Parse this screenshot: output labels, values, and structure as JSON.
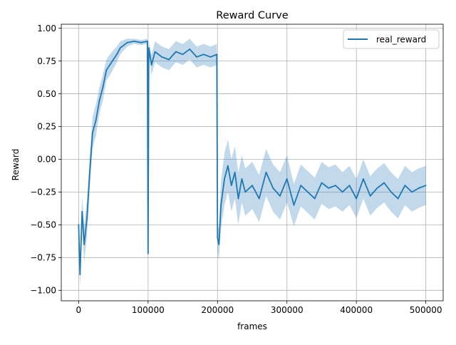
{
  "chart_data": {
    "type": "line",
    "title": "Reward Curve",
    "xlabel": "frames",
    "ylabel": "Reward",
    "xlim": [
      -25000,
      525000
    ],
    "ylim": [
      -1.08,
      1.03
    ],
    "x_ticks": [
      0,
      100000,
      200000,
      300000,
      400000,
      500000
    ],
    "x_tick_labels": [
      "0",
      "100000",
      "200000",
      "300000",
      "400000",
      "500000"
    ],
    "y_ticks": [
      -1.0,
      -0.75,
      -0.5,
      -0.25,
      0.0,
      0.25,
      0.5,
      0.75,
      1.0
    ],
    "y_tick_labels": [
      "−1.00",
      "−0.75",
      "−0.50",
      "−0.25",
      "0.00",
      "0.25",
      "0.50",
      "0.75",
      "1.00"
    ],
    "grid": true,
    "legend_position": "top-right",
    "series": [
      {
        "name": "real_reward",
        "color": "#1f77b4",
        "band_color": "#1f77b4",
        "x": [
          0,
          2000,
          5000,
          8000,
          12000,
          16000,
          20000,
          25000,
          30000,
          35000,
          40000,
          45000,
          50000,
          55000,
          60000,
          65000,
          70000,
          80000,
          90000,
          99000,
          100000,
          101000,
          105000,
          110000,
          120000,
          130000,
          140000,
          150000,
          160000,
          170000,
          180000,
          190000,
          199000,
          200000,
          202000,
          205000,
          210000,
          215000,
          220000,
          225000,
          230000,
          235000,
          240000,
          250000,
          260000,
          270000,
          280000,
          290000,
          300000,
          310000,
          320000,
          330000,
          340000,
          350000,
          360000,
          370000,
          380000,
          390000,
          400000,
          410000,
          420000,
          430000,
          440000,
          450000,
          460000,
          470000,
          480000,
          490000,
          500000
        ],
        "y": [
          -0.5,
          -0.88,
          -0.4,
          -0.65,
          -0.45,
          -0.1,
          0.2,
          0.3,
          0.45,
          0.55,
          0.68,
          0.72,
          0.76,
          0.8,
          0.85,
          0.87,
          0.89,
          0.9,
          0.89,
          0.9,
          -0.72,
          0.85,
          0.72,
          0.82,
          0.78,
          0.76,
          0.82,
          0.8,
          0.84,
          0.78,
          0.8,
          0.78,
          0.8,
          -0.6,
          -0.65,
          -0.35,
          -0.15,
          -0.05,
          -0.2,
          -0.1,
          -0.3,
          -0.15,
          -0.25,
          -0.2,
          -0.3,
          -0.1,
          -0.22,
          -0.28,
          -0.15,
          -0.35,
          -0.2,
          -0.25,
          -0.3,
          -0.18,
          -0.22,
          -0.2,
          -0.25,
          -0.2,
          -0.3,
          -0.15,
          -0.28,
          -0.22,
          -0.18,
          -0.25,
          -0.3,
          -0.2,
          -0.25,
          -0.22,
          -0.2
        ],
        "band_halfwidth": [
          0.1,
          0.1,
          0.12,
          0.14,
          0.14,
          0.12,
          0.12,
          0.12,
          0.1,
          0.1,
          0.08,
          0.08,
          0.07,
          0.06,
          0.05,
          0.04,
          0.03,
          0.02,
          0.02,
          0.02,
          0.02,
          0.05,
          0.08,
          0.08,
          0.08,
          0.08,
          0.08,
          0.08,
          0.08,
          0.08,
          0.08,
          0.08,
          0.08,
          0.1,
          0.12,
          0.18,
          0.2,
          0.2,
          0.2,
          0.2,
          0.2,
          0.18,
          0.18,
          0.18,
          0.18,
          0.18,
          0.18,
          0.18,
          0.18,
          0.16,
          0.16,
          0.16,
          0.16,
          0.16,
          0.16,
          0.16,
          0.15,
          0.15,
          0.15,
          0.15,
          0.15,
          0.15,
          0.15,
          0.15,
          0.15,
          0.15,
          0.15,
          0.15,
          0.15
        ]
      }
    ]
  }
}
